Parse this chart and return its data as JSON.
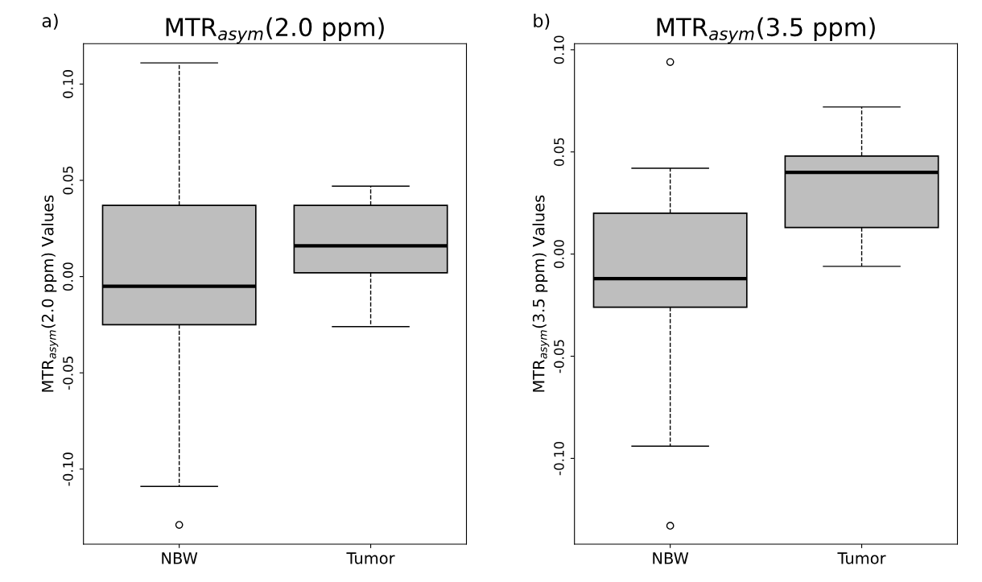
{
  "chart_data": [
    {
      "type": "box",
      "title": "MTR$_{asym}$(2.0 ppm)",
      "ylabel": "MTR$_{asym}$(2.0 ppm) Values",
      "annotations": [
        "a)"
      ],
      "categories": [
        "NBW",
        "Tumor"
      ],
      "color": "#bebebe",
      "boxes": [
        {
          "low": -0.109,
          "q1": -0.025,
          "median": -0.005,
          "q3": 0.037,
          "high": 0.111,
          "outliers": [
            -0.129
          ]
        },
        {
          "low": -0.026,
          "q1": 0.002,
          "median": 0.016,
          "q3": 0.037,
          "high": 0.047
        }
      ],
      "ylim": [
        -0.139,
        0.121
      ],
      "yticks": [
        {
          "value": -0.1,
          "label": "-0.10"
        },
        {
          "value": -0.05,
          "label": "-0.05"
        },
        {
          "value": 0,
          "label": "0.00"
        },
        {
          "value": 0.05,
          "label": "0.05"
        },
        {
          "value": 0.1,
          "label": "0.10"
        }
      ],
      "grid": false
    },
    {
      "type": "box",
      "title": "MTR$_{asym}$(3.5 ppm)",
      "ylabel": "MTR$_{asym}$(3.5 ppm) Values",
      "annotations": [
        "b)"
      ],
      "categories": [
        "NBW",
        "Tumor"
      ],
      "color": "#bebebe",
      "boxes": [
        {
          "low": -0.094,
          "q1": -0.026,
          "median": -0.012,
          "q3": 0.02,
          "high": 0.042,
          "outliers": [
            0.094,
            -0.133
          ]
        },
        {
          "low": -0.006,
          "q1": 0.013,
          "median": 0.04,
          "q3": 0.048,
          "high": 0.072
        }
      ],
      "ylim": [
        -0.142,
        0.103
      ],
      "yticks": [
        {
          "value": -0.1,
          "label": "-0.10"
        },
        {
          "value": -0.05,
          "label": "-0.05"
        },
        {
          "value": 0,
          "label": "0.00"
        },
        {
          "value": 0.05,
          "label": "0.05"
        },
        {
          "value": 0.1,
          "label": "0.10"
        }
      ],
      "grid": false
    }
  ]
}
